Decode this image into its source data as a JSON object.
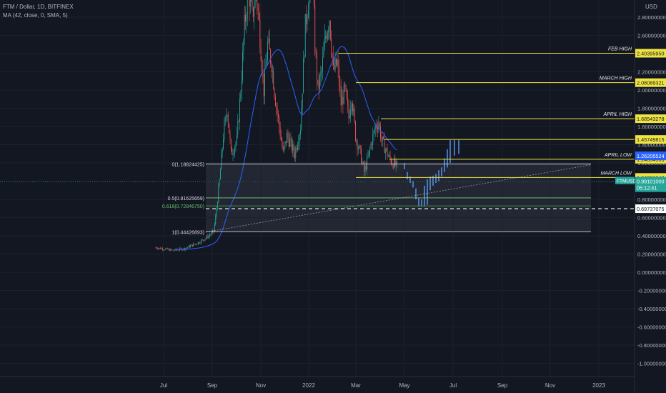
{
  "header": {
    "symbol_line": "FTM / Dollar, 1D, BITFINEX",
    "indicator_line": "MA (42, close, 0, SMA, 5)"
  },
  "currency_label": "USD",
  "colors": {
    "background": "#131722",
    "up_candle": "#26a69a",
    "down_candle": "#ef5350",
    "ma_line": "#2962ff",
    "level_line": "#f0e442",
    "fib_line": "#d1d4dc",
    "projection": "#5b9cf6"
  },
  "chart_data": {
    "type": "candlestick",
    "x_ticks": [
      "Jul",
      "Sep",
      "Nov",
      "2022",
      "Mar",
      "May",
      "Jul",
      "Sep",
      "Nov",
      "2023"
    ],
    "y_ticks": [
      "2.80000000",
      "2.60000000",
      "2.40000000",
      "2.20000000",
      "2.00000000",
      "1.80000000",
      "1.60000000",
      "1.40000000",
      "1.20000000",
      "1.00000000",
      "0.80000000",
      "0.60000000",
      "0.40000000",
      "0.20000000",
      "0.00000000",
      "-0.20000000",
      "-0.40000000",
      "-0.60000000",
      "-0.80000000",
      "-1.00000000"
    ],
    "y_range": [
      -1.05,
      2.95
    ],
    "horizontal_levels": [
      {
        "label": "FEB HIGH",
        "value": 2.4039595,
        "tag": "2.40395950"
      },
      {
        "label": "MARCH HIGH",
        "value": 2.08089321,
        "tag": "2.08089321"
      },
      {
        "label": "APRIL HIGH",
        "value": 1.68543278,
        "tag": "1.68543278"
      },
      {
        "label": "",
        "value": 1.45749815,
        "tag": "1.45749815"
      },
      {
        "label": "APRIL LOW",
        "value": 1.24034903,
        "tag": "1.24034903"
      },
      {
        "label": "MARCH LOW",
        "value": 1.04021947,
        "tag": "1.04021947"
      }
    ],
    "fib_levels": [
      {
        "label": "0(1.18824425)",
        "value": 1.18824425
      },
      {
        "label": "0.5(0.81625659)",
        "value": 0.81625659
      },
      {
        "label": "0.618(0.72846750)",
        "value": 0.7284675
      },
      {
        "label": "1(0.44426893)",
        "value": 0.44426893
      }
    ],
    "dashed_level": {
      "value": 0.69737075,
      "tag": "0.69737075"
    },
    "ma_value_tag": "1.26205524",
    "last_price": {
      "symbol": "FTMUSD",
      "value": 0.99101,
      "tag": "0.99101000",
      "countdown": "05:12:41"
    }
  }
}
